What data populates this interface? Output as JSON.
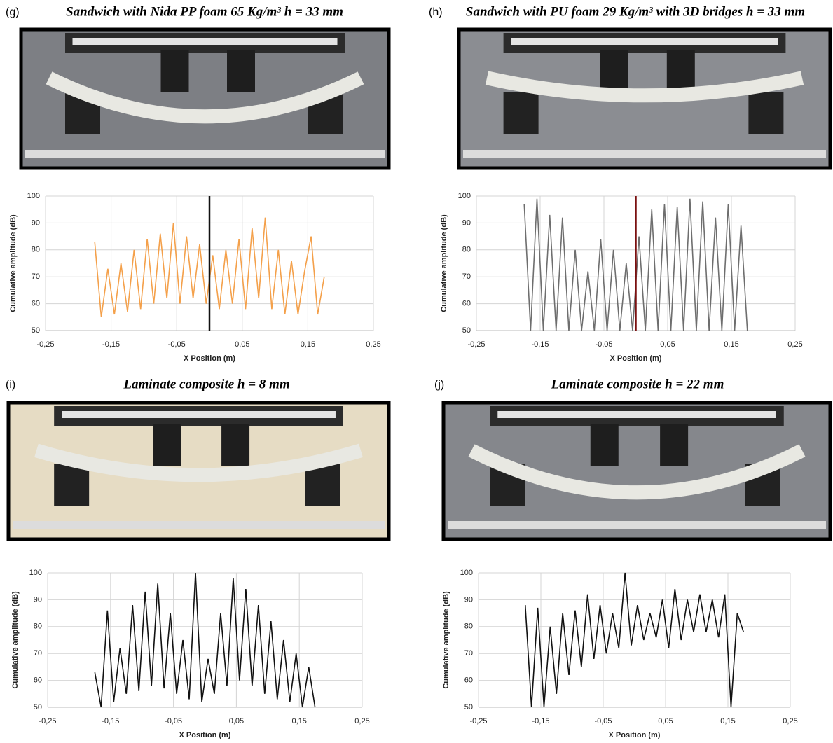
{
  "chart_data": [
    {
      "type": "line",
      "panel": "(g)",
      "title": "Sandwich with Nida PP foam 65 Kg/m³ h = 33 mm",
      "x_label": "X Position (m)",
      "y_label": "Cumulative amplitude (dB)",
      "x": [
        -0.175,
        -0.165,
        -0.155,
        -0.145,
        -0.135,
        -0.125,
        -0.115,
        -0.105,
        -0.095,
        -0.085,
        -0.075,
        -0.065,
        -0.055,
        -0.045,
        -0.035,
        -0.025,
        -0.015,
        -0.005,
        0.005,
        0.015,
        0.025,
        0.035,
        0.045,
        0.055,
        0.065,
        0.075,
        0.085,
        0.095,
        0.105,
        0.115,
        0.125,
        0.135,
        0.145,
        0.155,
        0.165,
        0.175
      ],
      "series": [
        {
          "color": "#f4a04a",
          "values": [
            83,
            55,
            73,
            56,
            75,
            57,
            80,
            58,
            84,
            60,
            86,
            62,
            90,
            60,
            85,
            62,
            82,
            60,
            78,
            58,
            80,
            60,
            84,
            58,
            88,
            62,
            92,
            58,
            80,
            56,
            76,
            56,
            72,
            85,
            56,
            70
          ]
        }
      ],
      "xlim": [
        -0.25,
        0.25
      ],
      "ylim": [
        50,
        100
      ],
      "xticks": [
        {
          "value": -0.25,
          "label": "-0,25"
        },
        {
          "value": -0.15,
          "label": "-0,15"
        },
        {
          "value": -0.05,
          "label": "-0,05"
        },
        {
          "value": 0.05,
          "label": "0,05"
        },
        {
          "value": 0.15,
          "label": "0,15"
        },
        {
          "value": 0.25,
          "label": "0,25"
        }
      ],
      "yticks": [
        50,
        60,
        70,
        80,
        90,
        100
      ],
      "grid": true,
      "marker_x": 0,
      "marker_color": "#111111"
    },
    {
      "type": "line",
      "panel": "(h)",
      "title": "Sandwich with PU foam 29 Kg/m³ with 3D bridges h = 33 mm",
      "x_label": "X Position (m)",
      "y_label": "Cumulative amplitude (dB)",
      "x": [
        -0.175,
        -0.165,
        -0.155,
        -0.145,
        -0.135,
        -0.125,
        -0.115,
        -0.105,
        -0.095,
        -0.085,
        -0.075,
        -0.065,
        -0.055,
        -0.045,
        -0.035,
        -0.025,
        -0.015,
        -0.005,
        0.005,
        0.015,
        0.025,
        0.035,
        0.045,
        0.055,
        0.065,
        0.075,
        0.085,
        0.095,
        0.105,
        0.115,
        0.125,
        0.135,
        0.145,
        0.155,
        0.165,
        0.175
      ],
      "series": [
        {
          "color": "#6e6e6e",
          "values": [
            97,
            50,
            99,
            50,
            93,
            50,
            92,
            50,
            80,
            50,
            72,
            50,
            84,
            50,
            80,
            50,
            75,
            50,
            85,
            50,
            95,
            50,
            97,
            50,
            96,
            50,
            99,
            50,
            98,
            50,
            92,
            50,
            97,
            50,
            89,
            50
          ]
        }
      ],
      "xlim": [
        -0.25,
        0.25
      ],
      "ylim": [
        50,
        100
      ],
      "xticks": [
        {
          "value": -0.25,
          "label": "-0,25"
        },
        {
          "value": -0.15,
          "label": "-0,15"
        },
        {
          "value": -0.05,
          "label": "-0,05"
        },
        {
          "value": 0.05,
          "label": "0,05"
        },
        {
          "value": 0.15,
          "label": "0,15"
        },
        {
          "value": 0.25,
          "label": "0,25"
        }
      ],
      "yticks": [
        50,
        60,
        70,
        80,
        90,
        100
      ],
      "grid": true,
      "marker_x": 0,
      "marker_color": "#7a1010"
    },
    {
      "type": "line",
      "panel": "(i)",
      "title": "Laminate composite h = 8 mm",
      "x_label": "X Position (m)",
      "y_label": "Cumulative amplitude (dB)",
      "x": [
        -0.175,
        -0.165,
        -0.155,
        -0.145,
        -0.135,
        -0.125,
        -0.115,
        -0.105,
        -0.095,
        -0.085,
        -0.075,
        -0.065,
        -0.055,
        -0.045,
        -0.035,
        -0.025,
        -0.015,
        -0.005,
        0.005,
        0.015,
        0.025,
        0.035,
        0.045,
        0.055,
        0.065,
        0.075,
        0.085,
        0.095,
        0.105,
        0.115,
        0.125,
        0.135,
        0.145,
        0.155,
        0.165,
        0.175
      ],
      "series": [
        {
          "color": "#111111",
          "values": [
            63,
            50,
            86,
            52,
            72,
            55,
            88,
            56,
            93,
            58,
            96,
            57,
            85,
            55,
            75,
            53,
            100,
            52,
            68,
            55,
            85,
            58,
            98,
            60,
            94,
            58,
            88,
            55,
            82,
            53,
            75,
            52,
            70,
            50,
            65,
            50
          ]
        }
      ],
      "xlim": [
        -0.25,
        0.25
      ],
      "ylim": [
        50,
        100
      ],
      "xticks": [
        {
          "value": -0.25,
          "label": "-0,25"
        },
        {
          "value": -0.15,
          "label": "-0,15"
        },
        {
          "value": -0.05,
          "label": "-0,05"
        },
        {
          "value": 0.05,
          "label": "0,05"
        },
        {
          "value": 0.15,
          "label": "0,15"
        },
        {
          "value": 0.25,
          "label": "0,25"
        }
      ],
      "yticks": [
        50,
        60,
        70,
        80,
        90,
        100
      ],
      "grid": true
    },
    {
      "type": "line",
      "panel": "(j)",
      "title": "Laminate composite h = 22 mm",
      "x_label": "X Position (m)",
      "y_label": "Cumulative amplitude (dB)",
      "x": [
        -0.175,
        -0.165,
        -0.155,
        -0.145,
        -0.135,
        -0.125,
        -0.115,
        -0.105,
        -0.095,
        -0.085,
        -0.075,
        -0.065,
        -0.055,
        -0.045,
        -0.035,
        -0.025,
        -0.015,
        -0.005,
        0.005,
        0.015,
        0.025,
        0.035,
        0.045,
        0.055,
        0.065,
        0.075,
        0.085,
        0.095,
        0.105,
        0.115,
        0.125,
        0.135,
        0.145,
        0.155,
        0.165,
        0.175
      ],
      "series": [
        {
          "color": "#111111",
          "values": [
            88,
            50,
            87,
            50,
            80,
            55,
            85,
            62,
            86,
            65,
            92,
            68,
            88,
            70,
            85,
            72,
            100,
            73,
            88,
            75,
            85,
            76,
            90,
            72,
            94,
            75,
            90,
            78,
            92,
            78,
            90,
            76,
            92,
            50,
            85,
            78
          ]
        }
      ],
      "xlim": [
        -0.25,
        0.25
      ],
      "ylim": [
        50,
        100
      ],
      "xticks": [
        {
          "value": -0.25,
          "label": "-0,25"
        },
        {
          "value": -0.15,
          "label": "-0,15"
        },
        {
          "value": -0.05,
          "label": "-0,05"
        },
        {
          "value": 0.05,
          "label": "0,05"
        },
        {
          "value": 0.15,
          "label": "0,15"
        },
        {
          "value": 0.25,
          "label": "0,25"
        }
      ],
      "yticks": [
        50,
        60,
        70,
        80,
        90,
        100
      ],
      "grid": true
    }
  ]
}
